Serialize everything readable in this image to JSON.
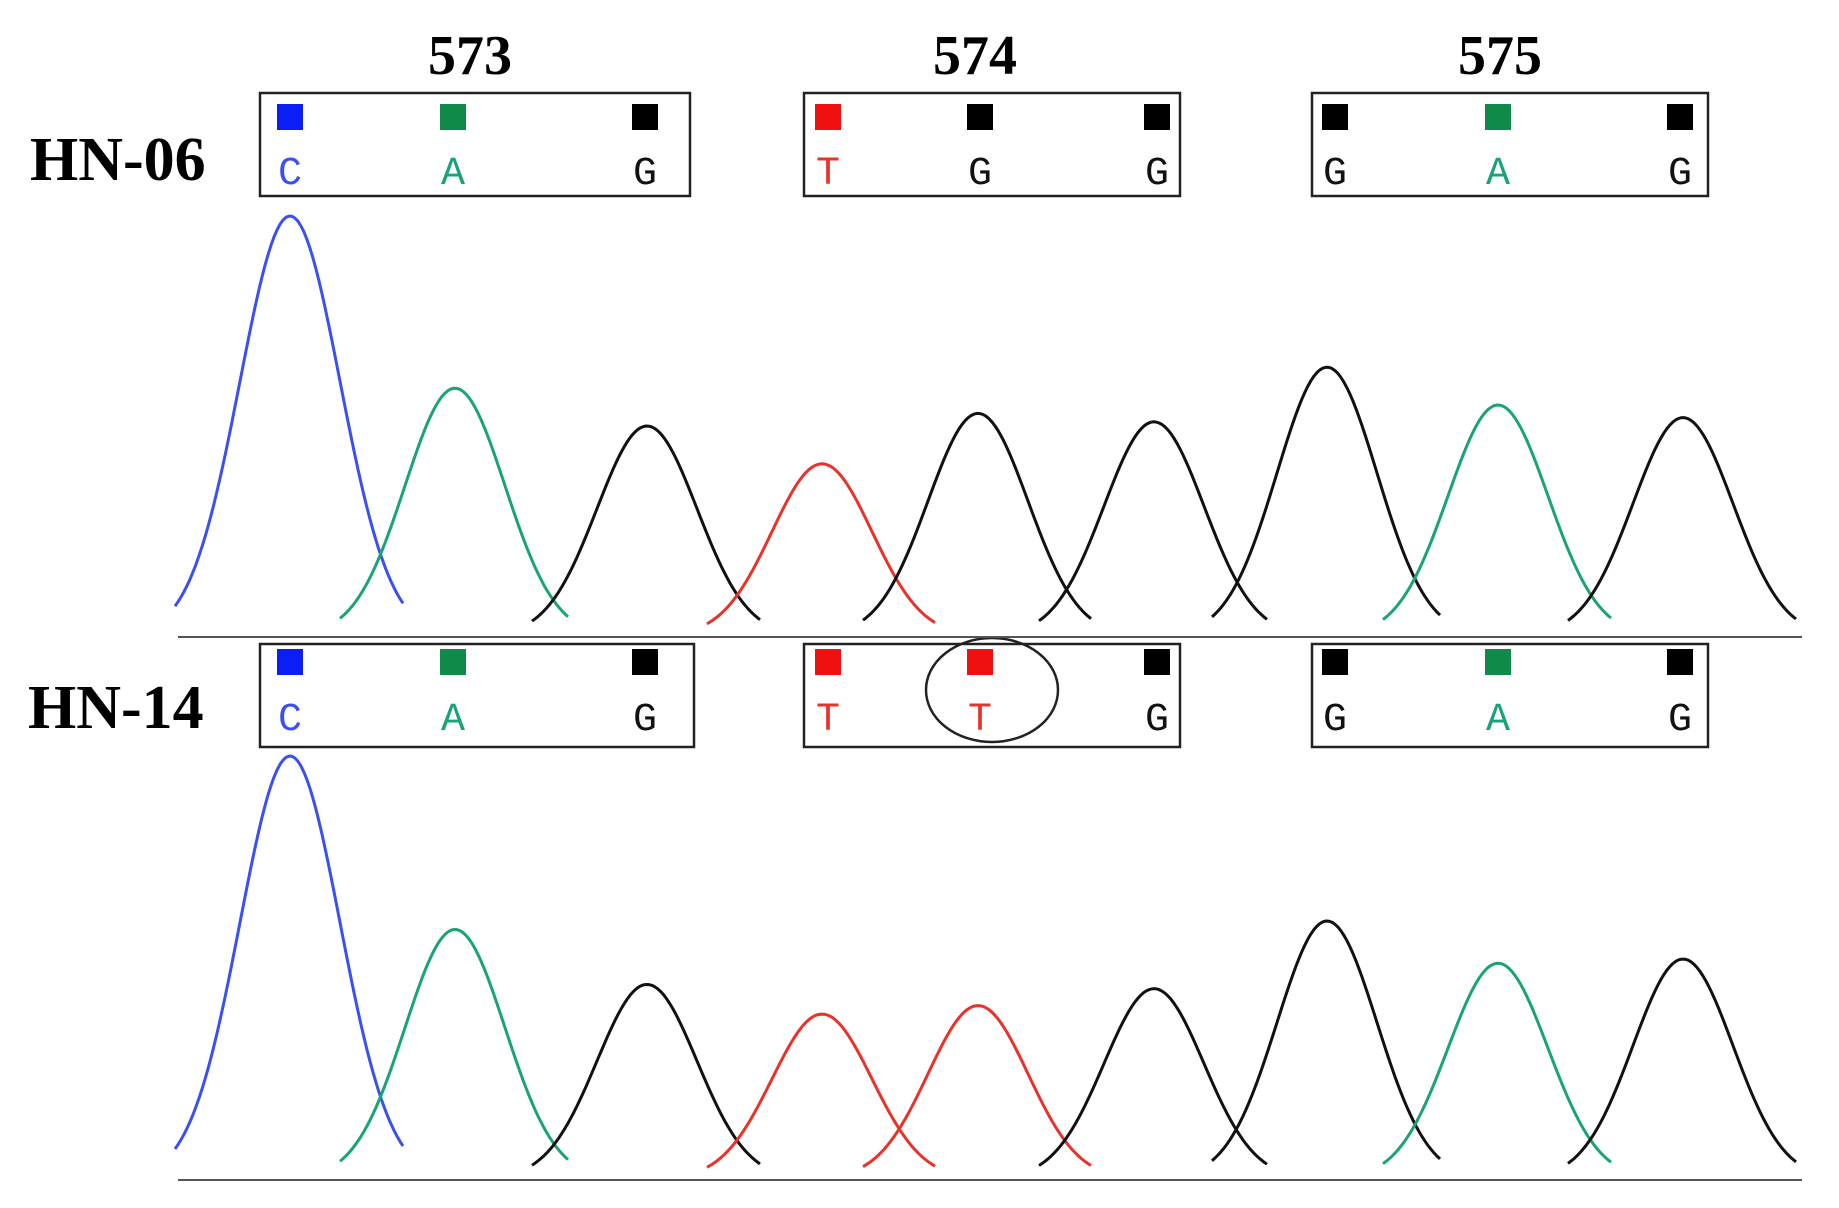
{
  "colors": {
    "A": "#1aa37a",
    "C": "#3a50f0",
    "G": "#111111",
    "T": "#e8322a",
    "square_A": "#108a48",
    "square_C": "#0a1ef5",
    "square_G": "#000000",
    "square_T": "#f01010"
  },
  "codons": [
    "573",
    "574",
    "575"
  ],
  "samples": [
    {
      "name": "HN-06",
      "calls": [
        [
          "C",
          "A",
          "G"
        ],
        [
          "T",
          "G",
          "G"
        ],
        [
          "G",
          "A",
          "G"
        ]
      ],
      "peaks": [
        {
          "base": "C",
          "height": 1.0
        },
        {
          "base": "A",
          "height": 0.59
        },
        {
          "base": "G",
          "height": 0.5
        },
        {
          "base": "T",
          "height": 0.41
        },
        {
          "base": "G",
          "height": 0.53
        },
        {
          "base": "G",
          "height": 0.51
        },
        {
          "base": "G",
          "height": 0.64
        },
        {
          "base": "A",
          "height": 0.55
        },
        {
          "base": "G",
          "height": 0.52
        }
      ]
    },
    {
      "name": "HN-14",
      "calls": [
        [
          "C",
          "A",
          "G"
        ],
        [
          "T",
          "T",
          "G"
        ],
        [
          "G",
          "A",
          "G"
        ]
      ],
      "highlight": [
        1,
        1
      ],
      "peaks": [
        {
          "base": "C",
          "height": 1.0
        },
        {
          "base": "A",
          "height": 0.59
        },
        {
          "base": "G",
          "height": 0.46
        },
        {
          "base": "T",
          "height": 0.39
        },
        {
          "base": "T",
          "height": 0.41
        },
        {
          "base": "G",
          "height": 0.45
        },
        {
          "base": "G",
          "height": 0.61
        },
        {
          "base": "A",
          "height": 0.51
        },
        {
          "base": "G",
          "height": 0.52
        }
      ]
    }
  ]
}
